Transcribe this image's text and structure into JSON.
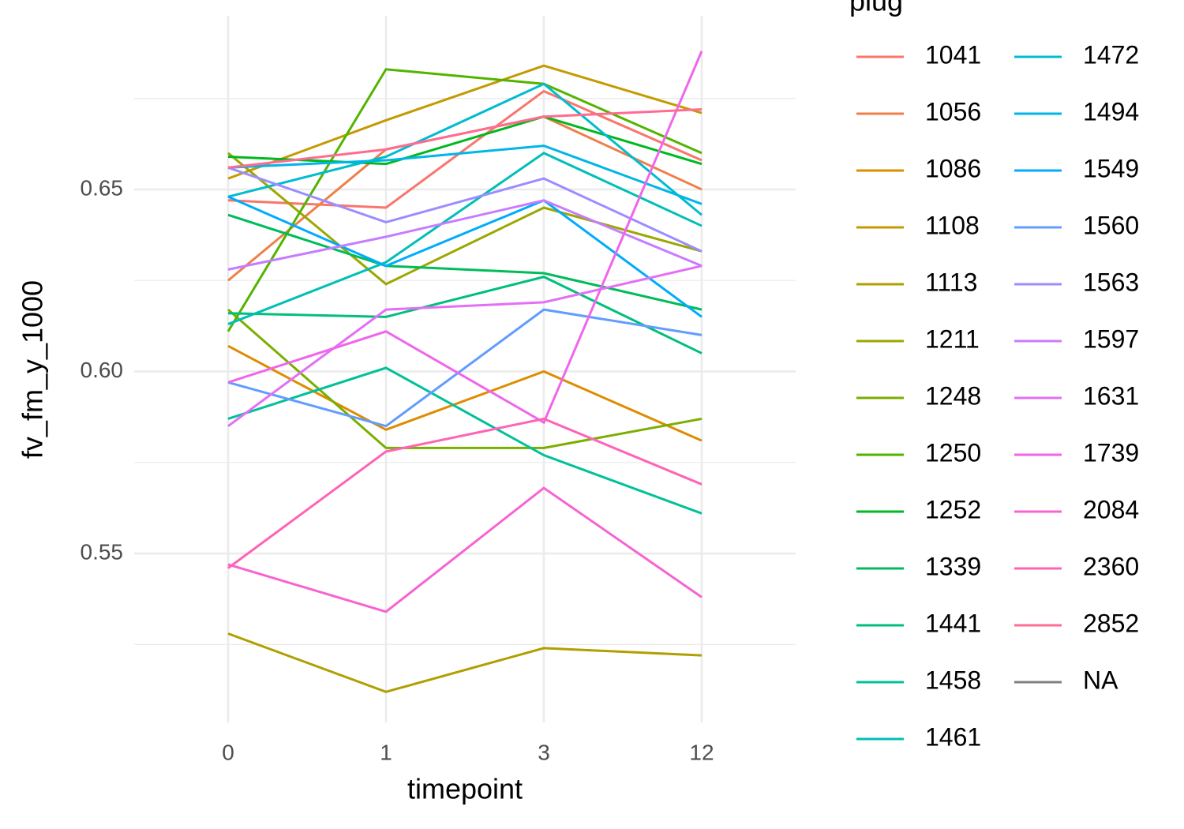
{
  "chart_data": {
    "type": "line",
    "x_label": "timepoint",
    "y_label": "fv_fm_y_1000",
    "legend_title": "plug",
    "categories": [
      "0",
      "1",
      "3",
      "12"
    ],
    "ylim": [
      0.5036,
      0.6977
    ],
    "yticks": [
      0.55,
      {
        "value": 0.6,
        "label": "0.60"
      },
      0.65
    ],
    "minor_yticks": [
      0.525,
      0.575,
      0.625,
      0.675
    ],
    "grid": true,
    "legend": "right",
    "series": [
      {
        "name": "1041",
        "color": "#F8766D",
        "values": [
          0.647,
          0.645,
          0.677,
          0.658
        ]
      },
      {
        "name": "1056",
        "color": "#EE7F48",
        "values": [
          0.625,
          0.661,
          0.67,
          0.65
        ]
      },
      {
        "name": "1086",
        "color": "#DE8C00",
        "values": [
          0.607,
          0.584,
          0.6,
          0.581
        ]
      },
      {
        "name": "1108",
        "color": "#C49A00",
        "values": [
          0.653,
          0.669,
          0.684,
          0.671
        ]
      },
      {
        "name": "1113",
        "color": "#B09F00",
        "values": [
          0.528,
          0.512,
          0.524,
          0.522
        ]
      },
      {
        "name": "1211",
        "color": "#9CA700",
        "values": [
          0.66,
          0.624,
          0.645,
          0.633
        ]
      },
      {
        "name": "1248",
        "color": "#7CAE00",
        "values": [
          0.617,
          0.579,
          0.579,
          0.587
        ]
      },
      {
        "name": "1250",
        "color": "#53B400",
        "values": [
          0.611,
          0.683,
          0.679,
          0.66
        ]
      },
      {
        "name": "1252",
        "color": "#00B81F",
        "values": [
          0.659,
          0.657,
          0.67,
          0.657
        ]
      },
      {
        "name": "1339",
        "color": "#00BC59",
        "values": [
          0.643,
          0.629,
          0.627,
          0.617
        ]
      },
      {
        "name": "1441",
        "color": "#00BF7D",
        "values": [
          0.616,
          0.615,
          0.626,
          0.605
        ]
      },
      {
        "name": "1458",
        "color": "#00C19A",
        "values": [
          0.587,
          0.601,
          0.577,
          0.561
        ]
      },
      {
        "name": "1461",
        "color": "#00BFB7",
        "values": [
          0.613,
          0.63,
          0.66,
          0.64
        ]
      },
      {
        "name": "1472",
        "color": "#00BCD0",
        "values": [
          0.648,
          0.659,
          0.679,
          0.643
        ]
      },
      {
        "name": "1494",
        "color": "#00B6E7",
        "values": [
          0.656,
          0.658,
          0.662,
          0.646
        ]
      },
      {
        "name": "1549",
        "color": "#00ACFC",
        "values": [
          0.648,
          0.629,
          0.647,
          0.615
        ]
      },
      {
        "name": "1560",
        "color": "#619CFF",
        "values": [
          0.597,
          0.585,
          0.617,
          0.61
        ]
      },
      {
        "name": "1563",
        "color": "#9C8DFF",
        "values": [
          0.656,
          0.641,
          0.653,
          0.633
        ]
      },
      {
        "name": "1597",
        "color": "#C77CFF",
        "values": [
          0.628,
          0.637,
          0.647,
          0.629
        ]
      },
      {
        "name": "1631",
        "color": "#E36FF6",
        "values": [
          0.585,
          0.617,
          0.619,
          0.629
        ]
      },
      {
        "name": "1739",
        "color": "#F066EA",
        "values": [
          0.597,
          0.611,
          0.586,
          0.688
        ]
      },
      {
        "name": "2084",
        "color": "#F763D3",
        "values": [
          0.547,
          0.534,
          0.568,
          0.538
        ]
      },
      {
        "name": "2360",
        "color": "#FF63B6",
        "values": [
          0.546,
          0.578,
          0.587,
          0.569
        ]
      },
      {
        "name": "2852",
        "color": "#FF6C91",
        "values": [
          0.656,
          0.661,
          0.67,
          0.672
        ]
      },
      {
        "name": "NA",
        "color": "#7F7F7F",
        "values": [
          null,
          null,
          null,
          null
        ]
      }
    ]
  }
}
